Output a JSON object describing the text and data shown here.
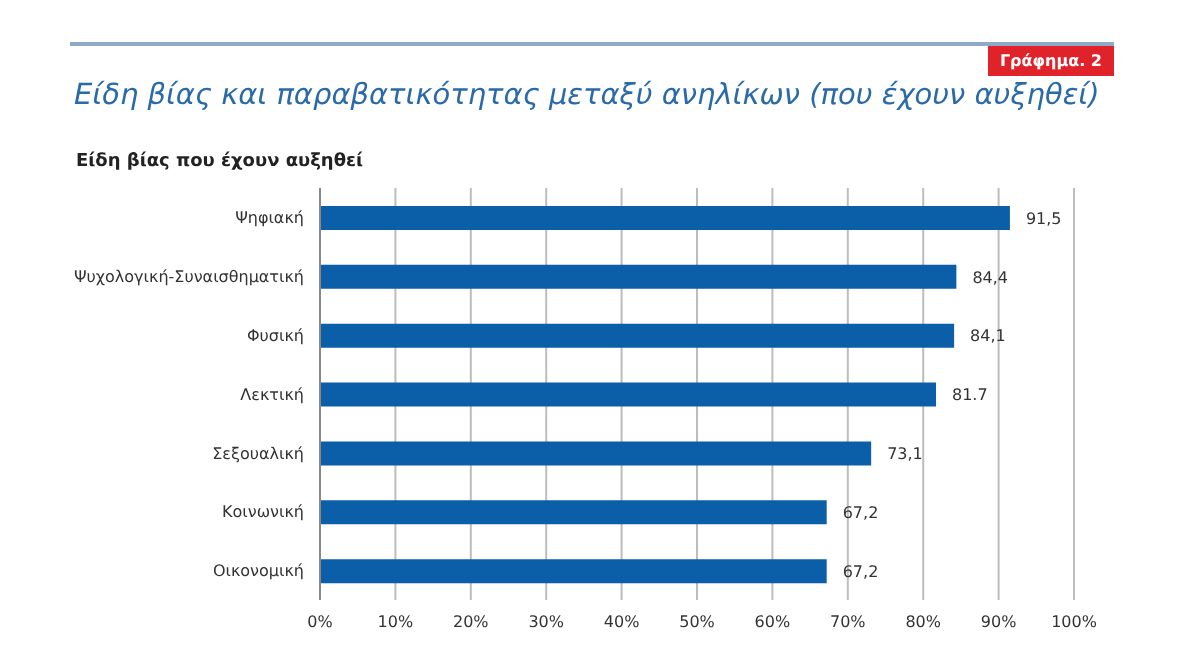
{
  "chart_data": {
    "type": "bar",
    "orientation": "horizontal",
    "title": "Είδη βίας και παραβατικότητας μεταξύ ανηλίκων (που έχουν αυξηθεί)",
    "subtitle": "Είδη βίας που έχουν αυξηθεί",
    "annotations": [
      "Γράφημα. 2"
    ],
    "categories": [
      "Ψηφιακή",
      "Ψυχολογική-Συναισθηματική",
      "Φυσική",
      "Λεκτική",
      "Σεξουαλική",
      "Κοινωνική",
      "Οικονομική"
    ],
    "values": [
      91.5,
      84.4,
      84.1,
      81.7,
      73.1,
      67.2,
      67.2
    ],
    "value_labels": [
      "91,5",
      "84,4",
      "84,1",
      "81.7",
      "73,1",
      "67,2",
      "67,2"
    ],
    "color": "#0b5ea8",
    "xlim": [
      0,
      100
    ],
    "xticks": [
      {
        "value": 0,
        "label": "0%"
      },
      {
        "value": 10,
        "label": "10%"
      },
      {
        "value": 20,
        "label": "20%"
      },
      {
        "value": 30,
        "label": "30%"
      },
      {
        "value": 40,
        "label": "40%"
      },
      {
        "value": 50,
        "label": "50%"
      },
      {
        "value": 60,
        "label": "60%"
      },
      {
        "value": 70,
        "label": "70%"
      },
      {
        "value": 80,
        "label": "80%"
      },
      {
        "value": 90,
        "label": "90%"
      },
      {
        "value": 100,
        "label": "100%"
      }
    ],
    "grid": "x"
  }
}
